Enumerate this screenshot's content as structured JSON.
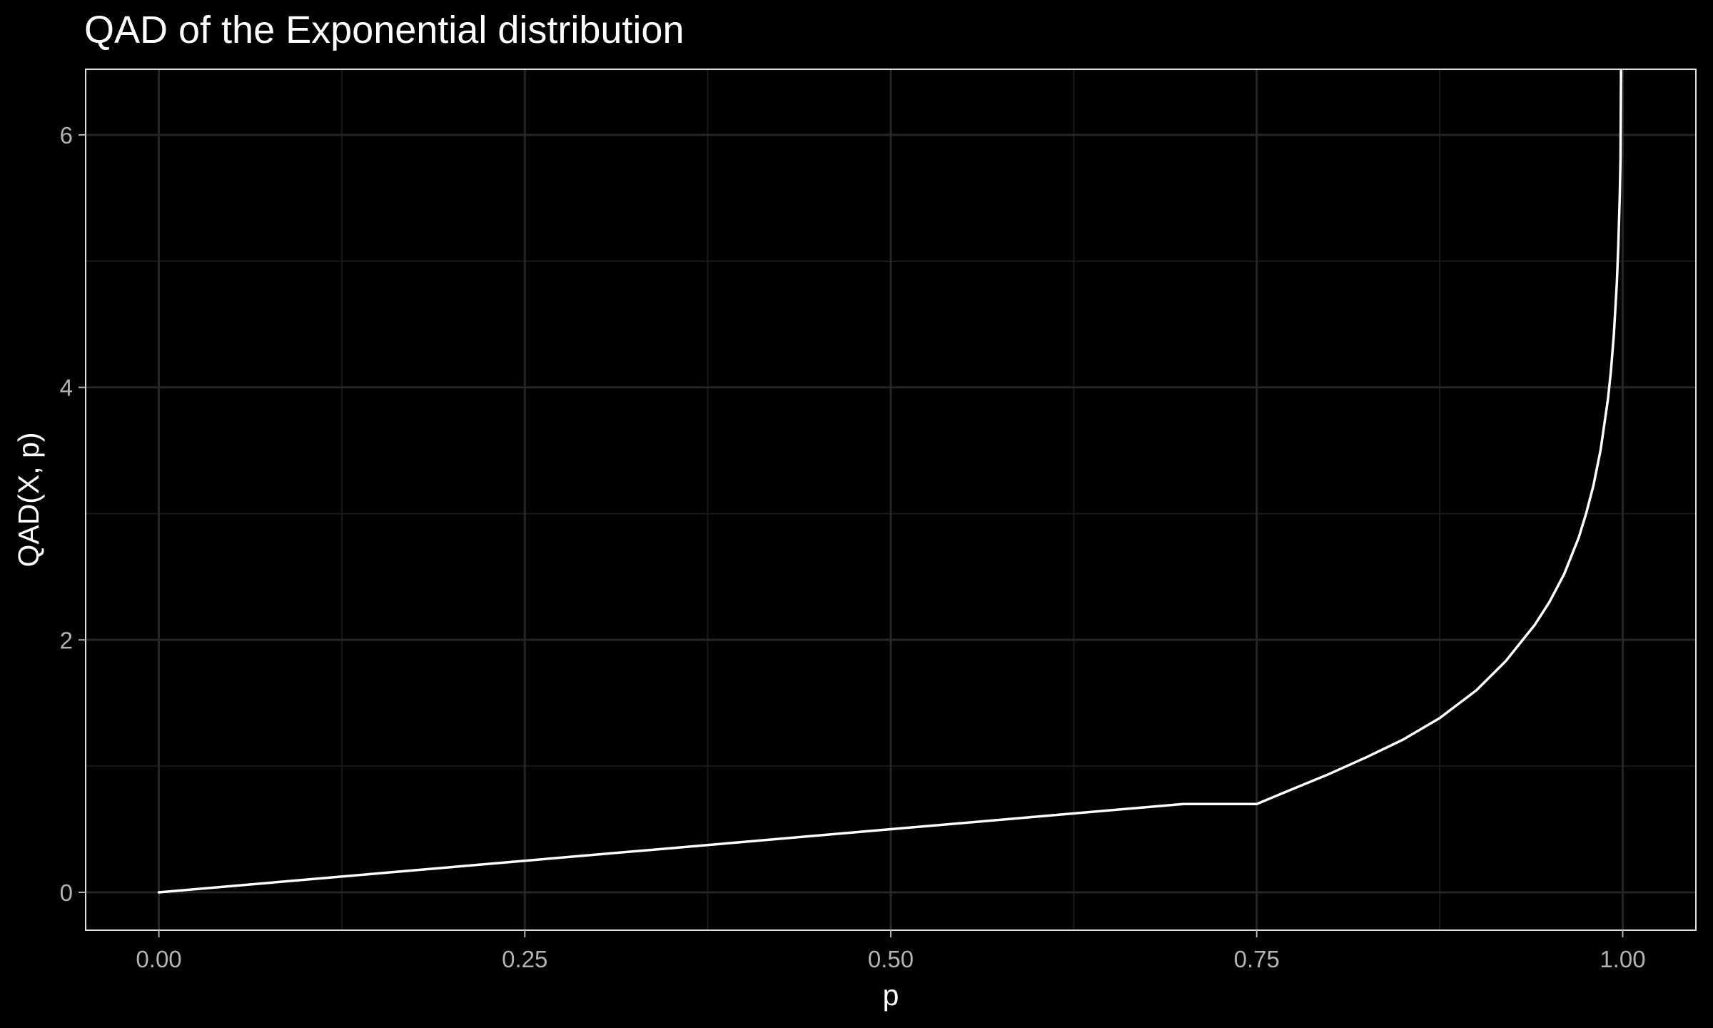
{
  "chart_data": {
    "type": "line",
    "title": "QAD of the Exponential distribution",
    "xlabel": "p",
    "ylabel": "QAD(X, p)",
    "xlim": [
      -0.05,
      1.05
    ],
    "ylim": [
      -0.3,
      6.52
    ],
    "x_ticks": [
      0,
      0.25,
      0.5,
      0.75,
      1
    ],
    "x_tick_labels": [
      "0.00",
      "0.25",
      "0.50",
      "0.75",
      "1.00"
    ],
    "y_ticks": [
      0,
      2,
      4,
      6
    ],
    "y_tick_labels": [
      "0",
      "2",
      "4",
      "6"
    ],
    "grid": true,
    "legend": "none",
    "colors": {
      "background": "#000000",
      "line": "#ffffff",
      "grid": "#262626",
      "text": "#ffffff",
      "tick_text": "#b3b3b3"
    },
    "series": [
      {
        "x": [
          0,
          0.05,
          0.1,
          0.15,
          0.2,
          0.25,
          0.3,
          0.35,
          0.4,
          0.45,
          0.5,
          0.55,
          0.6,
          0.65,
          0.7,
          0.75,
          0.775,
          0.8,
          0.825,
          0.85,
          0.875,
          0.9,
          0.92,
          0.94,
          0.95,
          0.96,
          0.97,
          0.975,
          0.98,
          0.985,
          0.99,
          0.992,
          0.994,
          0.996,
          0.997,
          0.998,
          0.9985
        ],
        "y": [
          0,
          0.05,
          0.1,
          0.15,
          0.2,
          0.25,
          0.3,
          0.35,
          0.4,
          0.45,
          0.5,
          0.55,
          0.6,
          0.65,
          0.7,
          0.7,
          0.82,
          0.94,
          1.07,
          1.21,
          1.38,
          1.6,
          1.83,
          2.12,
          2.3,
          2.52,
          2.81,
          3.0,
          3.22,
          3.51,
          3.91,
          4.13,
          4.42,
          4.83,
          5.12,
          5.52,
          5.81
        ]
      }
    ]
  }
}
